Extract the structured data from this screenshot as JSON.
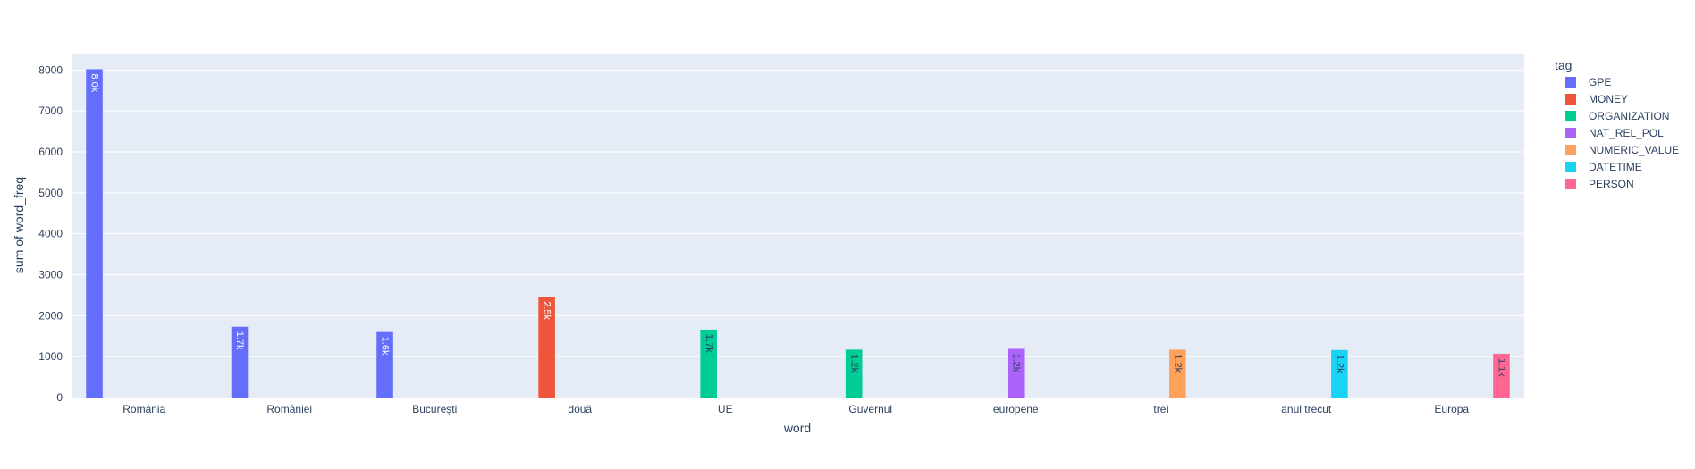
{
  "chart_data": {
    "type": "bar",
    "barmode": "group",
    "xlabel": "word",
    "ylabel": "sum of word_freq",
    "ylim": [
      0,
      8400
    ],
    "yticks": [
      0,
      1000,
      2000,
      3000,
      4000,
      5000,
      6000,
      7000,
      8000
    ],
    "grid": true,
    "legend_title": "tag",
    "legend_position": "right",
    "categories": [
      "România",
      "României",
      "București",
      "două",
      "UE",
      "Guvernul",
      "europene",
      "trei",
      "anul trecut",
      "Europa"
    ],
    "series": [
      {
        "name": "GPE",
        "color": "#636efa",
        "points": [
          {
            "category": "România",
            "value": 8020,
            "label": "8.0k"
          },
          {
            "category": "României",
            "value": 1730,
            "label": "1.7k"
          },
          {
            "category": "București",
            "value": 1600,
            "label": "1.6k"
          }
        ]
      },
      {
        "name": "MONEY",
        "color": "#ef553b",
        "points": [
          {
            "category": "două",
            "value": 2460,
            "label": "2.5k"
          }
        ]
      },
      {
        "name": "ORGANIZATION",
        "color": "#00cc96",
        "points": [
          {
            "category": "UE",
            "value": 1660,
            "label": "1.7k"
          },
          {
            "category": "Guvernul",
            "value": 1170,
            "label": "1.2k"
          }
        ]
      },
      {
        "name": "NAT_REL_POL",
        "color": "#ab63fa",
        "points": [
          {
            "category": "europene",
            "value": 1190,
            "label": "1.2k"
          }
        ]
      },
      {
        "name": "NUMERIC_VALUE",
        "color": "#ffa15a",
        "points": [
          {
            "category": "trei",
            "value": 1170,
            "label": "1.2k"
          }
        ]
      },
      {
        "name": "DATETIME",
        "color": "#19d3f3",
        "points": [
          {
            "category": "anul trecut",
            "value": 1160,
            "label": "1.2k"
          }
        ]
      },
      {
        "name": "PERSON",
        "color": "#ff6692",
        "points": [
          {
            "category": "Europa",
            "value": 1070,
            "label": "1.1k"
          }
        ]
      }
    ]
  }
}
